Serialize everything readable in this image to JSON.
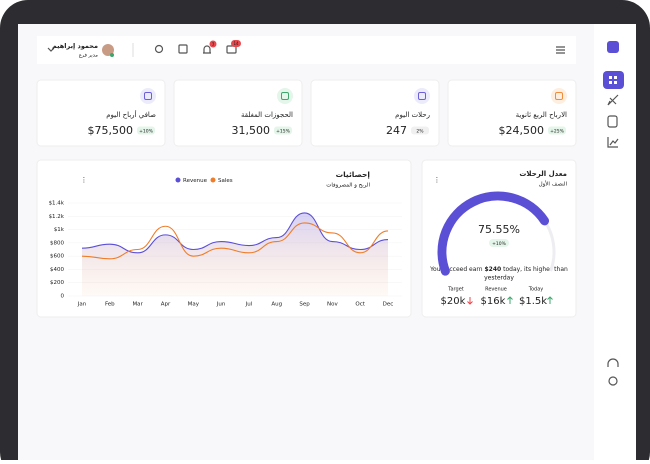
{
  "header": {
    "user_name": "محمود إبراهيم",
    "user_role": "مدير فرع",
    "notifications": "3",
    "messages": "14"
  },
  "cards": [
    {
      "title": "الارباح الربع ثانوية",
      "value": "$24,500",
      "change": "+25%",
      "color": "#f08c3a",
      "bg": "#fdeee0"
    },
    {
      "title": "رحلات اليوم",
      "value": "247",
      "change": "2%",
      "color": "#6d5fd8",
      "bg": "#ecebfb"
    },
    {
      "title": "الحجوزات المغلقة",
      "value": "31,500",
      "change": "+15%",
      "color": "#3fa56c",
      "bg": "#e4f5ea"
    },
    {
      "title": "صافي أرباح اليوم",
      "value": "$75,500",
      "change": "+10%",
      "color": "#6d5fd8",
      "bg": "#ecebfb"
    }
  ],
  "chart_data": {
    "type": "line",
    "title": "إحصائيات",
    "subtitle": "الربح و المصروفات",
    "categories": [
      "Jan",
      "Feb",
      "Mar",
      "Apr",
      "May",
      "Jun",
      "Jul",
      "Aug",
      "Sep",
      "Nov",
      "Oct",
      "Dec"
    ],
    "series": [
      {
        "name": "Revenue",
        "color": "#5b4fd6",
        "values": [
          720,
          780,
          650,
          920,
          700,
          820,
          760,
          880,
          1250,
          820,
          700,
          850
        ]
      },
      {
        "name": "Sales",
        "color": "#ef7d2a",
        "values": [
          600,
          560,
          700,
          1050,
          600,
          720,
          650,
          820,
          1100,
          950,
          650,
          980
        ]
      }
    ],
    "ylim": [
      0,
      1400
    ],
    "yticks": [
      0,
      {
        "value": 200,
        "label": "$200"
      },
      {
        "value": 400,
        "label": "$400"
      },
      {
        "value": 600,
        "label": "$600"
      },
      {
        "value": 800,
        "label": "$800"
      },
      {
        "value": 1000,
        "label": "$1k"
      },
      {
        "value": 1200,
        "label": "$1.2k"
      },
      {
        "value": 1400,
        "label": "$1.4k"
      }
    ]
  },
  "gauge": {
    "title": "معدل الرحلات",
    "subtitle": "النصف الأول",
    "value": 75.55,
    "value_label": "75.55%",
    "max": 100,
    "badge": "+10%",
    "message_start": "You succeed earn ",
    "message_amount": "$240",
    "message_end": " today, its higher than",
    "message_line2": "yesterday",
    "stats": [
      {
        "label": "Target",
        "value": "$20k",
        "trend": "down"
      },
      {
        "label": "Revenue",
        "value": "$16k",
        "trend": "up"
      },
      {
        "label": "Today",
        "value": "$1.5k",
        "trend": "up"
      }
    ]
  }
}
